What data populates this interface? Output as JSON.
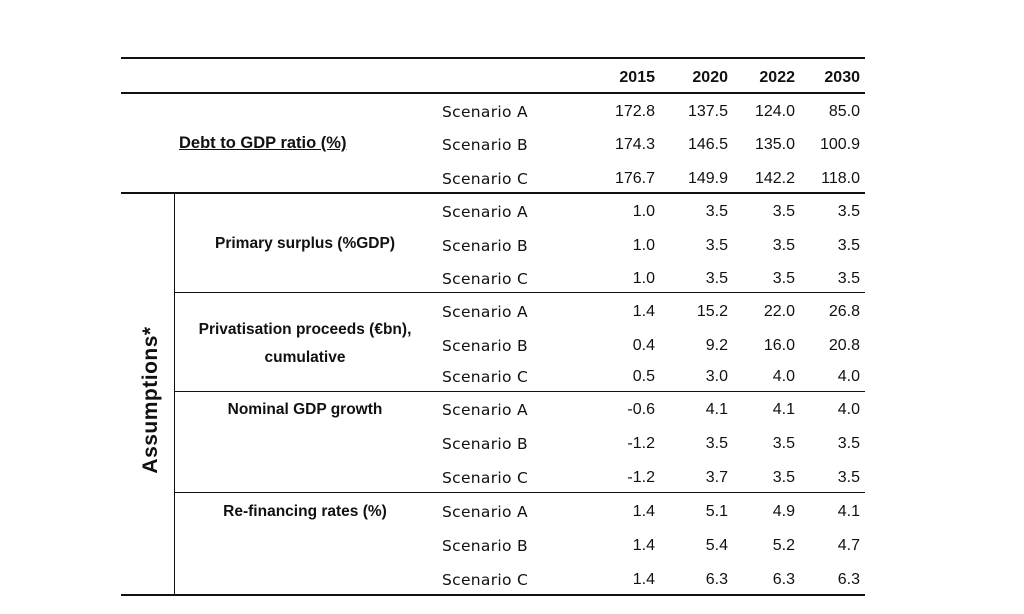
{
  "years": [
    "2015",
    "2020",
    "2022",
    "2030"
  ],
  "assumptions_label": "Assumptions*",
  "debt": {
    "label": "Debt to GDP ratio (%)",
    "rows": [
      {
        "scenario": "Scenario A",
        "values": [
          "172.8",
          "137.5",
          "124.0",
          "85.0"
        ]
      },
      {
        "scenario": "Scenario B",
        "values": [
          "174.3",
          "146.5",
          "135.0",
          "100.9"
        ]
      },
      {
        "scenario": "Scenario C",
        "values": [
          "176.7",
          "149.9",
          "142.2",
          "118.0"
        ]
      }
    ]
  },
  "assumptions": [
    {
      "label_lines": [
        "Primary surplus (%GDP)"
      ],
      "rows": [
        {
          "scenario": "Scenario A",
          "values": [
            "1.0",
            "3.5",
            "3.5",
            "3.5"
          ]
        },
        {
          "scenario": "Scenario B",
          "values": [
            "1.0",
            "3.5",
            "3.5",
            "3.5"
          ]
        },
        {
          "scenario": "Scenario C",
          "values": [
            "1.0",
            "3.5",
            "3.5",
            "3.5"
          ]
        }
      ]
    },
    {
      "label_lines": [
        "Privatisation proceeds (€bn),",
        "cumulative"
      ],
      "rows": [
        {
          "scenario": "Scenario A",
          "values": [
            "1.4",
            "15.2",
            "22.0",
            "26.8"
          ]
        },
        {
          "scenario": "Scenario B",
          "values": [
            "0.4",
            "9.2",
            "16.0",
            "20.8"
          ]
        },
        {
          "scenario": "Scenario C",
          "values": [
            "0.5",
            "3.0",
            "4.0",
            "4.0"
          ]
        }
      ]
    },
    {
      "label_lines": [
        "Nominal GDP growth"
      ],
      "rows": [
        {
          "scenario": "Scenario A",
          "values": [
            "-0.6",
            "4.1",
            "4.1",
            "4.0"
          ]
        },
        {
          "scenario": "Scenario B",
          "values": [
            "-1.2",
            "3.5",
            "3.5",
            "3.5"
          ]
        },
        {
          "scenario": "Scenario C",
          "values": [
            "-1.2",
            "3.7",
            "3.5",
            "3.5"
          ]
        }
      ]
    },
    {
      "label_lines": [
        "Re-financing rates (%)"
      ],
      "rows": [
        {
          "scenario": "Scenario A",
          "values": [
            "1.4",
            "5.1",
            "4.9",
            "4.1"
          ]
        },
        {
          "scenario": "Scenario B",
          "values": [
            "1.4",
            "5.4",
            "5.2",
            "4.7"
          ]
        },
        {
          "scenario": "Scenario C",
          "values": [
            "1.4",
            "6.3",
            "6.3",
            "6.3"
          ]
        }
      ]
    }
  ]
}
